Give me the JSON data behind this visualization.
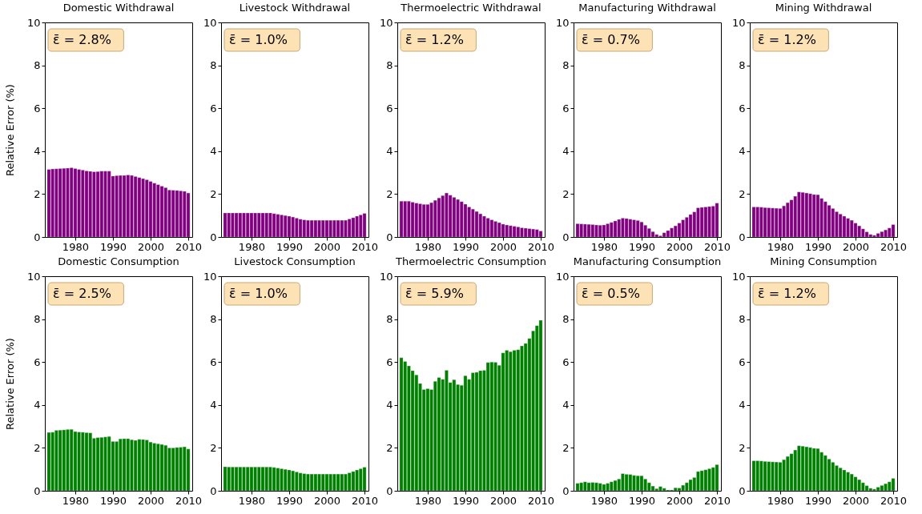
{
  "chart_data": [
    {
      "type": "bar",
      "title": "Domestic Withdrawal",
      "ylabel": "Relative Error (%)",
      "color": "#800080",
      "x": [
        1973,
        1974,
        1975,
        1976,
        1977,
        1978,
        1979,
        1980,
        1981,
        1982,
        1983,
        1984,
        1985,
        1986,
        1987,
        1988,
        1989,
        1990,
        1991,
        1992,
        1993,
        1994,
        1995,
        1996,
        1997,
        1998,
        1999,
        2000,
        2001,
        2002,
        2003,
        2004,
        2005,
        2006,
        2007,
        2008,
        2009,
        2010
      ],
      "values": [
        3.15,
        3.17,
        3.18,
        3.19,
        3.2,
        3.21,
        3.23,
        3.19,
        3.15,
        3.12,
        3.08,
        3.06,
        3.04,
        3.05,
        3.07,
        3.07,
        3.07,
        2.84,
        2.86,
        2.87,
        2.87,
        2.89,
        2.87,
        2.82,
        2.77,
        2.72,
        2.67,
        2.59,
        2.51,
        2.44,
        2.37,
        2.3,
        2.19,
        2.18,
        2.17,
        2.15,
        2.13,
        2.05
      ],
      "xlim": [
        1973,
        2010
      ],
      "ylim": [
        0,
        10
      ],
      "xticks": [
        1980,
        1990,
        2000,
        2010
      ],
      "yticks": [
        0,
        2,
        4,
        6,
        8,
        10
      ],
      "annotations": [
        "ε̄ = 2.8%"
      ]
    },
    {
      "type": "bar",
      "title": "Livestock Withdrawal",
      "color": "#800080",
      "x": [
        1973,
        1974,
        1975,
        1976,
        1977,
        1978,
        1979,
        1980,
        1981,
        1982,
        1983,
        1984,
        1985,
        1986,
        1987,
        1988,
        1989,
        1990,
        1991,
        1992,
        1993,
        1994,
        1995,
        1996,
        1997,
        1998,
        1999,
        2000,
        2001,
        2002,
        2003,
        2004,
        2005,
        2006,
        2007,
        2008,
        2009,
        2010
      ],
      "values": [
        1.12,
        1.12,
        1.12,
        1.12,
        1.12,
        1.12,
        1.12,
        1.12,
        1.12,
        1.12,
        1.12,
        1.12,
        1.12,
        1.09,
        1.06,
        1.03,
        1.0,
        0.97,
        0.93,
        0.88,
        0.83,
        0.8,
        0.78,
        0.78,
        0.78,
        0.78,
        0.78,
        0.78,
        0.78,
        0.78,
        0.78,
        0.78,
        0.78,
        0.84,
        0.9,
        0.97,
        1.03,
        1.1
      ],
      "xlim": [
        1973,
        2010
      ],
      "ylim": [
        0,
        10
      ],
      "xticks": [
        1980,
        1990,
        2000,
        2010
      ],
      "yticks": [
        0,
        2,
        4,
        6,
        8,
        10
      ],
      "annotations": [
        "ε̄ = 1.0%"
      ]
    },
    {
      "type": "bar",
      "title": "Thermoelectric Withdrawal",
      "color": "#800080",
      "x": [
        1973,
        1974,
        1975,
        1976,
        1977,
        1978,
        1979,
        1980,
        1981,
        1982,
        1983,
        1984,
        1985,
        1986,
        1987,
        1988,
        1989,
        1990,
        1991,
        1992,
        1993,
        1994,
        1995,
        1996,
        1997,
        1998,
        1999,
        2000,
        2001,
        2002,
        2003,
        2004,
        2005,
        2006,
        2007,
        2008,
        2009,
        2010
      ],
      "values": [
        1.67,
        1.67,
        1.67,
        1.62,
        1.58,
        1.55,
        1.52,
        1.52,
        1.6,
        1.71,
        1.82,
        1.93,
        2.05,
        1.95,
        1.85,
        1.75,
        1.65,
        1.53,
        1.4,
        1.3,
        1.19,
        1.08,
        0.97,
        0.88,
        0.8,
        0.73,
        0.67,
        0.6,
        0.56,
        0.53,
        0.5,
        0.47,
        0.43,
        0.41,
        0.39,
        0.37,
        0.35,
        0.28
      ],
      "xlim": [
        1973,
        2010
      ],
      "ylim": [
        0,
        10
      ],
      "xticks": [
        1980,
        1990,
        2000,
        2010
      ],
      "yticks": [
        0,
        2,
        4,
        6,
        8,
        10
      ],
      "annotations": [
        "ε̄ = 1.2%"
      ]
    },
    {
      "type": "bar",
      "title": "Manufacturing Withdrawal",
      "color": "#800080",
      "x": [
        1973,
        1974,
        1975,
        1976,
        1977,
        1978,
        1979,
        1980,
        1981,
        1982,
        1983,
        1984,
        1985,
        1986,
        1987,
        1988,
        1989,
        1990,
        1991,
        1992,
        1993,
        1994,
        1995,
        1996,
        1997,
        1998,
        1999,
        2000,
        2001,
        2002,
        2003,
        2004,
        2005,
        2006,
        2007,
        2008,
        2009,
        2010
      ],
      "values": [
        0.62,
        0.61,
        0.6,
        0.59,
        0.58,
        0.56,
        0.55,
        0.56,
        0.62,
        0.68,
        0.75,
        0.82,
        0.88,
        0.86,
        0.83,
        0.8,
        0.77,
        0.7,
        0.55,
        0.4,
        0.25,
        0.12,
        0.06,
        0.2,
        0.3,
        0.42,
        0.52,
        0.65,
        0.8,
        0.92,
        1.05,
        1.17,
        1.36,
        1.38,
        1.4,
        1.42,
        1.44,
        1.58
      ],
      "xlim": [
        1973,
        2010
      ],
      "ylim": [
        0,
        10
      ],
      "xticks": [
        1980,
        1990,
        2000,
        2010
      ],
      "yticks": [
        0,
        2,
        4,
        6,
        8,
        10
      ],
      "annotations": [
        "ε̄ = 0.7%"
      ]
    },
    {
      "type": "bar",
      "title": "Mining Withdrawal",
      "color": "#800080",
      "x": [
        1973,
        1974,
        1975,
        1976,
        1977,
        1978,
        1979,
        1980,
        1981,
        1982,
        1983,
        1984,
        1985,
        1986,
        1987,
        1988,
        1989,
        1990,
        1991,
        1992,
        1993,
        1994,
        1995,
        1996,
        1997,
        1998,
        1999,
        2000,
        2001,
        2002,
        2003,
        2004,
        2005,
        2006,
        2007,
        2008,
        2009,
        2010
      ],
      "values": [
        1.4,
        1.4,
        1.39,
        1.37,
        1.36,
        1.35,
        1.34,
        1.33,
        1.45,
        1.6,
        1.73,
        1.9,
        2.1,
        2.08,
        2.05,
        2.02,
        1.98,
        1.97,
        1.8,
        1.65,
        1.48,
        1.33,
        1.18,
        1.07,
        0.97,
        0.87,
        0.78,
        0.65,
        0.52,
        0.38,
        0.24,
        0.12,
        0.08,
        0.17,
        0.25,
        0.33,
        0.42,
        0.58
      ],
      "xlim": [
        1973,
        2010
      ],
      "ylim": [
        0,
        10
      ],
      "xticks": [
        1980,
        1990,
        2000,
        2010
      ],
      "yticks": [
        0,
        2,
        4,
        6,
        8,
        10
      ],
      "annotations": [
        "ε̄ = 1.2%"
      ]
    },
    {
      "type": "bar",
      "title": "Domestic Consumption",
      "ylabel": "Relative Error (%)",
      "color": "#008000",
      "x": [
        1973,
        1974,
        1975,
        1976,
        1977,
        1978,
        1979,
        1980,
        1981,
        1982,
        1983,
        1984,
        1985,
        1986,
        1987,
        1988,
        1989,
        1990,
        1991,
        1992,
        1993,
        1994,
        1995,
        1996,
        1997,
        1998,
        1999,
        2000,
        2001,
        2002,
        2003,
        2004,
        2005,
        2006,
        2007,
        2008,
        2009,
        2010
      ],
      "values": [
        2.72,
        2.73,
        2.82,
        2.83,
        2.84,
        2.86,
        2.86,
        2.76,
        2.74,
        2.73,
        2.71,
        2.7,
        2.45,
        2.48,
        2.49,
        2.51,
        2.53,
        2.3,
        2.3,
        2.42,
        2.43,
        2.43,
        2.38,
        2.35,
        2.4,
        2.39,
        2.37,
        2.27,
        2.22,
        2.19,
        2.16,
        2.12,
        2.0,
        2.0,
        2.02,
        2.03,
        2.05,
        1.95
      ],
      "xlim": [
        1973,
        2010
      ],
      "ylim": [
        0,
        10
      ],
      "xticks": [
        1980,
        1990,
        2000,
        2010
      ],
      "yticks": [
        0,
        2,
        4,
        6,
        8,
        10
      ],
      "annotations": [
        "ε̄ = 2.5%"
      ]
    },
    {
      "type": "bar",
      "title": "Livestock Consumption",
      "color": "#008000",
      "x": [
        1973,
        1974,
        1975,
        1976,
        1977,
        1978,
        1979,
        1980,
        1981,
        1982,
        1983,
        1984,
        1985,
        1986,
        1987,
        1988,
        1989,
        1990,
        1991,
        1992,
        1993,
        1994,
        1995,
        1996,
        1997,
        1998,
        1999,
        2000,
        2001,
        2002,
        2003,
        2004,
        2005,
        2006,
        2007,
        2008,
        2009,
        2010
      ],
      "values": [
        1.12,
        1.11,
        1.11,
        1.11,
        1.11,
        1.11,
        1.11,
        1.11,
        1.11,
        1.11,
        1.11,
        1.11,
        1.11,
        1.09,
        1.06,
        1.03,
        1.0,
        0.97,
        0.93,
        0.88,
        0.83,
        0.8,
        0.78,
        0.78,
        0.78,
        0.78,
        0.78,
        0.78,
        0.78,
        0.78,
        0.78,
        0.78,
        0.78,
        0.84,
        0.9,
        0.97,
        1.03,
        1.1
      ],
      "xlim": [
        1973,
        2010
      ],
      "ylim": [
        0,
        10
      ],
      "xticks": [
        1980,
        1990,
        2000,
        2010
      ],
      "yticks": [
        0,
        2,
        4,
        6,
        8,
        10
      ],
      "annotations": [
        "ε̄ = 1.0%"
      ]
    },
    {
      "type": "bar",
      "title": "Thermoelectric Consumption",
      "color": "#008000",
      "x": [
        1973,
        1974,
        1975,
        1976,
        1977,
        1978,
        1979,
        1980,
        1981,
        1982,
        1983,
        1984,
        1985,
        1986,
        1987,
        1988,
        1989,
        1990,
        1991,
        1992,
        1993,
        1994,
        1995,
        1996,
        1997,
        1998,
        1999,
        2000,
        2001,
        2002,
        2003,
        2004,
        2005,
        2006,
        2007,
        2008,
        2009,
        2010
      ],
      "values": [
        6.2,
        6.03,
        5.82,
        5.6,
        5.4,
        5.0,
        4.72,
        4.76,
        4.72,
        5.1,
        5.28,
        5.2,
        5.62,
        5.05,
        5.18,
        4.95,
        4.92,
        5.36,
        5.2,
        5.5,
        5.52,
        5.6,
        5.62,
        5.98,
        6.0,
        5.99,
        5.85,
        6.43,
        6.55,
        6.48,
        6.55,
        6.58,
        6.75,
        6.87,
        7.1,
        7.45,
        7.7,
        7.95
      ],
      "xlim": [
        1973,
        2010
      ],
      "ylim": [
        0,
        10
      ],
      "xticks": [
        1980,
        1990,
        2000,
        2010
      ],
      "yticks": [
        0,
        2,
        4,
        6,
        8,
        10
      ],
      "annotations": [
        "ε̄ = 5.9%"
      ]
    },
    {
      "type": "bar",
      "title": "Manufacturing Consumption",
      "color": "#008000",
      "x": [
        1973,
        1974,
        1975,
        1976,
        1977,
        1978,
        1979,
        1980,
        1981,
        1982,
        1983,
        1984,
        1985,
        1986,
        1987,
        1988,
        1989,
        1990,
        1991,
        1992,
        1993,
        1994,
        1995,
        1996,
        1997,
        1998,
        1999,
        2000,
        2001,
        2002,
        2003,
        2004,
        2005,
        2006,
        2007,
        2008,
        2009,
        2010
      ],
      "values": [
        0.35,
        0.38,
        0.42,
        0.38,
        0.39,
        0.38,
        0.35,
        0.3,
        0.35,
        0.42,
        0.48,
        0.55,
        0.8,
        0.77,
        0.76,
        0.72,
        0.7,
        0.7,
        0.55,
        0.38,
        0.22,
        0.1,
        0.2,
        0.12,
        0.04,
        0.04,
        0.14,
        0.13,
        0.26,
        0.38,
        0.52,
        0.62,
        0.9,
        0.94,
        0.98,
        1.03,
        1.09,
        1.22
      ],
      "xlim": [
        1973,
        2010
      ],
      "ylim": [
        0,
        10
      ],
      "xticks": [
        1980,
        1990,
        2000,
        2010
      ],
      "yticks": [
        0,
        2,
        4,
        6,
        8,
        10
      ],
      "annotations": [
        "ε̄ = 0.5%"
      ]
    },
    {
      "type": "bar",
      "title": "Mining Consumption",
      "color": "#008000",
      "x": [
        1973,
        1974,
        1975,
        1976,
        1977,
        1978,
        1979,
        1980,
        1981,
        1982,
        1983,
        1984,
        1985,
        1986,
        1987,
        1988,
        1989,
        1990,
        1991,
        1992,
        1993,
        1994,
        1995,
        1996,
        1997,
        1998,
        1999,
        2000,
        2001,
        2002,
        2003,
        2004,
        2005,
        2006,
        2007,
        2008,
        2009,
        2010
      ],
      "values": [
        1.4,
        1.4,
        1.39,
        1.37,
        1.36,
        1.35,
        1.34,
        1.33,
        1.45,
        1.6,
        1.73,
        1.9,
        2.1,
        2.08,
        2.05,
        2.02,
        1.98,
        1.97,
        1.8,
        1.65,
        1.48,
        1.33,
        1.18,
        1.07,
        0.97,
        0.87,
        0.78,
        0.65,
        0.52,
        0.38,
        0.24,
        0.12,
        0.08,
        0.17,
        0.25,
        0.33,
        0.42,
        0.58
      ],
      "xlim": [
        1973,
        2010
      ],
      "ylim": [
        0,
        10
      ],
      "xticks": [
        1980,
        1990,
        2000,
        2010
      ],
      "yticks": [
        0,
        2,
        4,
        6,
        8,
        10
      ],
      "annotations": [
        "ε̄ = 1.2%"
      ]
    }
  ]
}
